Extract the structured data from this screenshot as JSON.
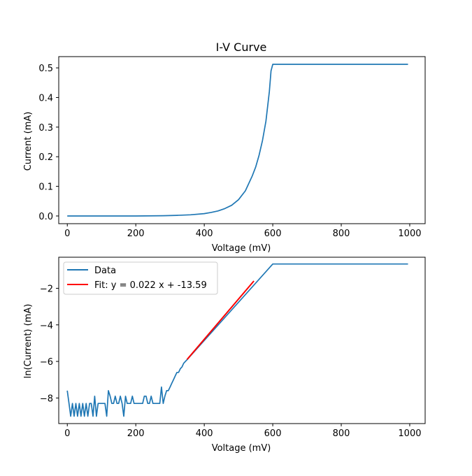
{
  "chart_data": [
    {
      "type": "line",
      "title": "I-V Curve",
      "xlabel": "Voltage (mV)",
      "ylabel": "Current (mA)",
      "xlim": [
        -25,
        1045
      ],
      "ylim": [
        -0.026,
        0.538
      ],
      "xticks": [
        "0",
        "200",
        "400",
        "600",
        "800",
        "1000"
      ],
      "yticks": [
        "0.0",
        "0.1",
        "0.2",
        "0.3",
        "0.4",
        "0.5"
      ],
      "grid": false,
      "series": [
        {
          "color": "#1f77b4",
          "x": [
            0,
            100,
            200,
            280,
            320,
            360,
            400,
            420,
            440,
            460,
            480,
            500,
            520,
            540,
            550,
            560,
            570,
            580,
            590,
            595,
            600,
            650,
            700,
            800,
            900,
            995
          ],
          "y": [
            0.0,
            0.0,
            0.0,
            0.001,
            0.002,
            0.004,
            0.008,
            0.012,
            0.017,
            0.025,
            0.036,
            0.055,
            0.085,
            0.135,
            0.165,
            0.205,
            0.255,
            0.32,
            0.42,
            0.49,
            0.512,
            0.512,
            0.512,
            0.512,
            0.512,
            0.512
          ]
        }
      ]
    },
    {
      "type": "line",
      "title": "",
      "xlabel": "Voltage (mV)",
      "ylabel": "ln(Current) (mA)",
      "xlim": [
        -25,
        1045
      ],
      "ylim": [
        -9.4,
        -0.3
      ],
      "xticks": [
        "0",
        "200",
        "400",
        "600",
        "800",
        "1000"
      ],
      "yticks": [
        "−8",
        "−6",
        "−4",
        "−2"
      ],
      "grid": false,
      "legend_position": "top-left",
      "series": [
        {
          "name": "Data",
          "color": "#1f77b4",
          "x": [
            0,
            5,
            10,
            15,
            20,
            25,
            30,
            35,
            40,
            45,
            50,
            55,
            60,
            65,
            70,
            75,
            80,
            85,
            90,
            95,
            100,
            105,
            110,
            115,
            120,
            125,
            130,
            135,
            140,
            145,
            150,
            155,
            160,
            165,
            170,
            175,
            180,
            185,
            190,
            195,
            200,
            205,
            210,
            215,
            220,
            225,
            230,
            235,
            240,
            245,
            250,
            255,
            260,
            265,
            270,
            275,
            280,
            285,
            290,
            295,
            300,
            305,
            310,
            315,
            320,
            325,
            330,
            335,
            340,
            350,
            600,
            995
          ],
          "y": [
            -7.6,
            -8.3,
            -9.0,
            -8.3,
            -9.0,
            -8.3,
            -9.0,
            -8.3,
            -9.0,
            -8.3,
            -9.0,
            -8.3,
            -9.0,
            -8.3,
            -8.3,
            -9.0,
            -7.9,
            -9.0,
            -8.3,
            -8.3,
            -8.3,
            -8.3,
            -8.3,
            -9.0,
            -7.6,
            -7.9,
            -8.3,
            -8.3,
            -7.9,
            -8.3,
            -8.3,
            -7.9,
            -8.3,
            -9.0,
            -7.9,
            -8.3,
            -8.3,
            -8.3,
            -7.9,
            -8.3,
            -8.3,
            -8.3,
            -8.3,
            -8.3,
            -8.3,
            -7.9,
            -7.9,
            -8.3,
            -8.3,
            -7.9,
            -8.3,
            -8.3,
            -8.3,
            -8.3,
            -8.3,
            -7.4,
            -8.3,
            -7.9,
            -7.6,
            -7.6,
            -7.4,
            -7.2,
            -7.0,
            -6.8,
            -6.6,
            -6.6,
            -6.4,
            -6.3,
            -6.1,
            -5.9,
            -0.67,
            -0.67
          ]
        },
        {
          "name": "Fit: y = 0.022 x + -13.59",
          "color": "#ff0000",
          "x": [
            350,
            545
          ],
          "y": [
            -5.89,
            -1.6
          ]
        }
      ]
    }
  ]
}
